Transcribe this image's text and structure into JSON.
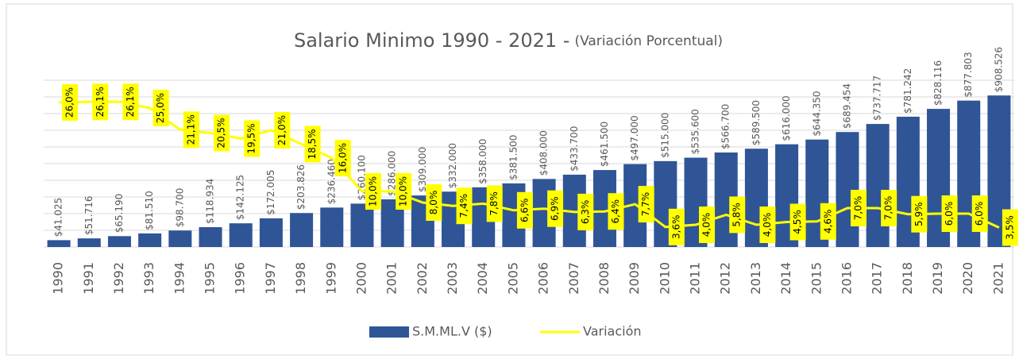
{
  "chart_data": {
    "type": "bar_line",
    "title": "Salario Minimo 1990 - 2021 -",
    "subtitle": "(Variación Porcentual)",
    "categories": [
      "1990",
      "1991",
      "1992",
      "1993",
      "1994",
      "1995",
      "1996",
      "1997",
      "1998",
      "1999",
      "2000",
      "2001",
      "2002",
      "2003",
      "2004",
      "2005",
      "2006",
      "2007",
      "2008",
      "2009",
      "2010",
      "2011",
      "2012",
      "2013",
      "2014",
      "2015",
      "2016",
      "2017",
      "2018",
      "2019",
      "2020",
      "2021"
    ],
    "series": [
      {
        "name": "S.M.ML.V ($)",
        "type": "bar",
        "color": "#2f5597",
        "values": [
          41025,
          51716,
          65190,
          81510,
          98700,
          118934,
          142125,
          172005,
          203826,
          236460,
          260100,
          286000,
          309000,
          332000,
          358000,
          381500,
          408000,
          433700,
          461500,
          497000,
          515000,
          535600,
          566700,
          589500,
          616000,
          644350,
          689454,
          737717,
          781242,
          828116,
          877803,
          908526
        ],
        "value_labels": [
          "$41.025",
          "$51.716",
          "$65.190",
          "$81.510",
          "$98.700",
          "$118.934",
          "$142.125",
          "$172.005",
          "$203.826",
          "$236.460",
          "$260.100",
          "$286.000",
          "$309.000",
          "$332.000",
          "$358.000",
          "$381.500",
          "$408.000",
          "$433.700",
          "$461.500",
          "$497.000",
          "$515.000",
          "$535.600",
          "$566.700",
          "$589.500",
          "$616.000",
          "$644.350",
          "$689.454",
          "$737.717",
          "$781.242",
          "$828.116",
          "$877.803",
          "$908.526"
        ]
      },
      {
        "name": "Variación",
        "type": "line",
        "axis": "y2",
        "color": "#ffff00",
        "values": [
          26.0,
          26.1,
          26.1,
          25.0,
          21.1,
          20.5,
          19.5,
          21.0,
          18.5,
          16.0,
          10.0,
          10.0,
          8.0,
          7.4,
          7.8,
          6.6,
          6.9,
          6.3,
          6.4,
          7.7,
          3.6,
          4.0,
          5.8,
          4.0,
          4.5,
          4.6,
          7.0,
          7.0,
          5.9,
          6.0,
          6.0,
          3.5
        ],
        "value_labels": [
          "26,0%",
          "26,1%",
          "26,1%",
          "25,0%",
          "21,1%",
          "20,5%",
          "19,5%",
          "21,0%",
          "18,5%",
          "16,0%",
          "10,0%",
          "10,0%",
          "8,0%",
          "7,4%",
          "7,8%",
          "6,6%",
          "6,9%",
          "6,3%",
          "6,4%",
          "7,7%",
          "3,6%",
          "4,0%",
          "5,8%",
          "4,0%",
          "4,5%",
          "4,6%",
          "7,0%",
          "7,0%",
          "5,9%",
          "6,0%",
          "6,0%",
          "3,5%"
        ]
      }
    ],
    "ylim": [
      0,
      1000000
    ],
    "yticks": [
      0,
      100000,
      200000,
      300000,
      400000,
      500000,
      600000,
      700000,
      800000,
      900000,
      1000000
    ],
    "y2lim": [
      0,
      30
    ],
    "grid": true
  }
}
